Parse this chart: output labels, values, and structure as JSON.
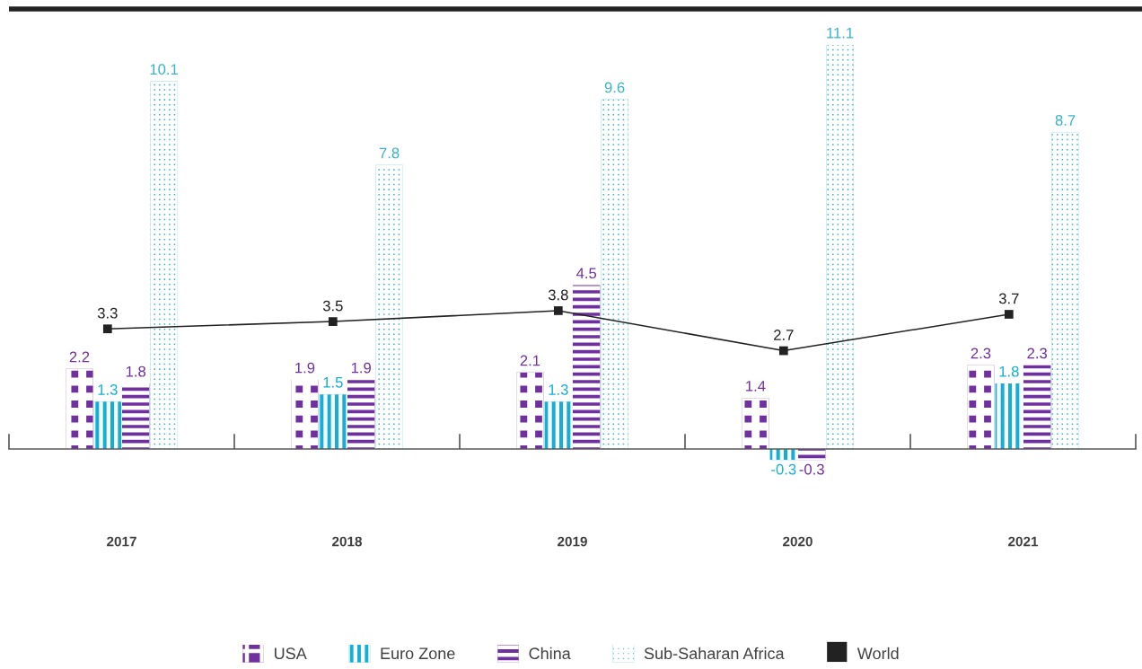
{
  "chart_data": {
    "type": "bar",
    "categories": [
      "2017",
      "2018",
      "2019",
      "2020",
      "2021"
    ],
    "series": [
      {
        "name": "USA",
        "color": "#7030a0",
        "values": [
          2.2,
          1.9,
          2.1,
          1.4,
          2.3
        ]
      },
      {
        "name": "Euro Zone",
        "color": "#12afd6",
        "values": [
          1.3,
          1.5,
          1.3,
          -0.3,
          1.8
        ]
      },
      {
        "name": "China",
        "color": "#6f2f9f",
        "values": [
          1.8,
          1.9,
          4.5,
          -0.3,
          2.3
        ]
      },
      {
        "name": "Sub-Saharan Africa",
        "color": "#36b3c6",
        "values": [
          10.1,
          7.8,
          9.6,
          11.1,
          8.7
        ]
      },
      {
        "name": "World",
        "type": "line",
        "color": "#222222",
        "marker": "square",
        "line_style": "solid",
        "values": [
          3.3,
          3.5,
          3.8,
          2.7,
          3.7
        ]
      }
    ],
    "data_labels": true,
    "legend": "bottom",
    "tick_labels": "x"
  }
}
